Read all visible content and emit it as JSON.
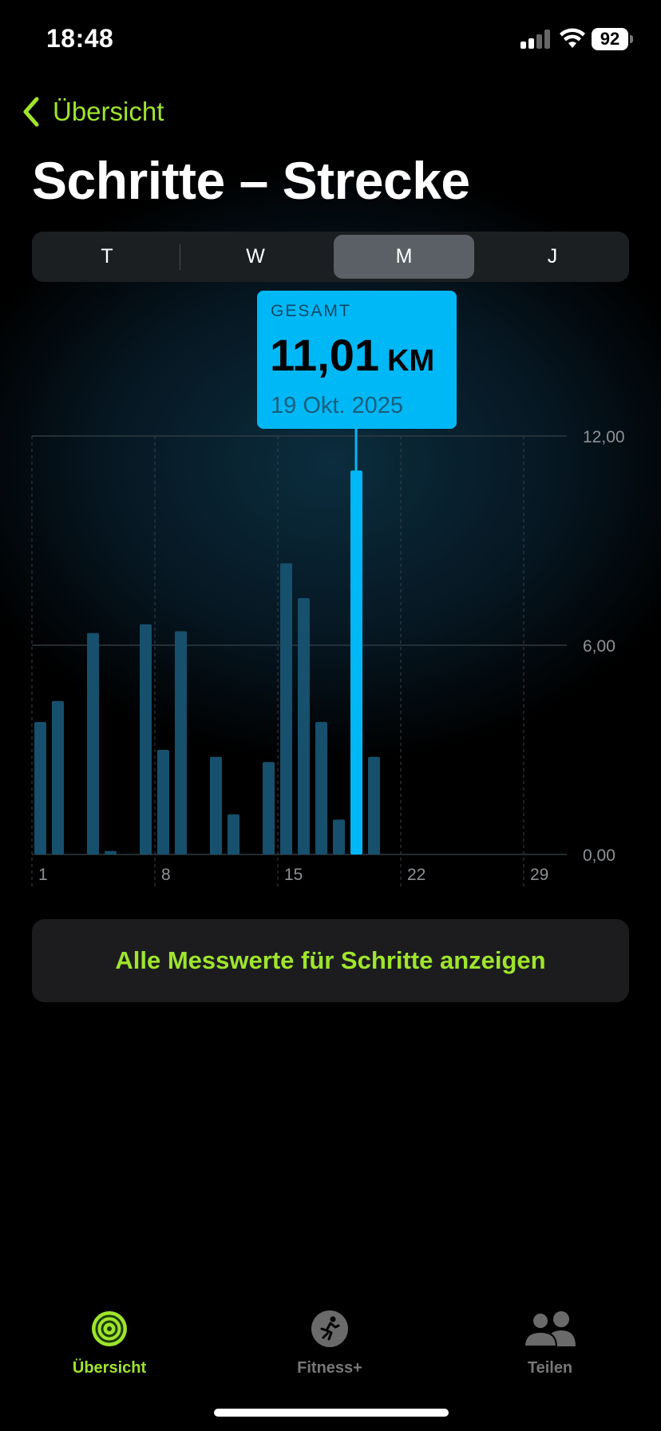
{
  "status_bar": {
    "time": "18:48",
    "battery": "92"
  },
  "nav": {
    "back_label": "Übersicht"
  },
  "title": "Schritte – Strecke",
  "segments": [
    {
      "label": "T",
      "active": false
    },
    {
      "label": "W",
      "active": false
    },
    {
      "label": "M",
      "active": true
    },
    {
      "label": "J",
      "active": false
    }
  ],
  "tooltip": {
    "label": "GESAMT",
    "value": "11,01",
    "unit": "KM",
    "date": "19 Okt. 2025"
  },
  "chart_data": {
    "type": "bar",
    "x": [
      1,
      2,
      3,
      4,
      5,
      6,
      7,
      8,
      9,
      10,
      11,
      12,
      13,
      14,
      15,
      16,
      17,
      18,
      19,
      20
    ],
    "values": [
      3.8,
      4.4,
      0,
      6.35,
      0.1,
      0,
      6.6,
      3.0,
      6.4,
      0,
      2.8,
      1.15,
      0,
      2.65,
      8.35,
      7.35,
      3.8,
      1.0,
      11.01,
      2.8
    ],
    "selected_day": 19,
    "x_ticks": [
      "1",
      "8",
      "15",
      "22",
      "29"
    ],
    "y_ticks": [
      "0,00",
      "6,00",
      "12,00"
    ],
    "ylim": [
      0,
      12
    ],
    "colors": {
      "bar": "#16506c",
      "selected": "#00b8f6"
    }
  },
  "actions": {
    "show_all": "Alle Messwerte für Schritte anzeigen"
  },
  "tab_bar": [
    {
      "label": "Übersicht",
      "icon": "activity-rings-icon",
      "active": true
    },
    {
      "label": "Fitness+",
      "icon": "runner-icon",
      "active": false
    },
    {
      "label": "Teilen",
      "icon": "people-icon",
      "active": false
    }
  ],
  "theme": {
    "accent": "#9fe52b",
    "tooltip": "#00b8f6"
  }
}
